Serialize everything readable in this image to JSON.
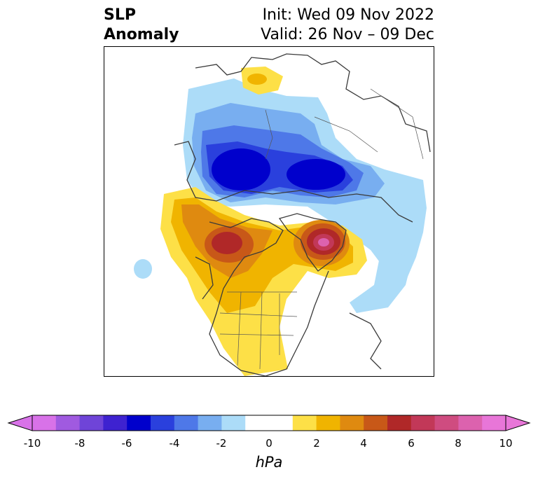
{
  "title": {
    "left_line1": "SLP",
    "left_line2": "Anomaly",
    "right_line1": "Init: Wed 09 Nov 2022",
    "right_line2": "Valid: 26 Nov – 09 Dec"
  },
  "colorbar": {
    "unit": "hPa",
    "ticks": [
      "-10",
      "-8",
      "-6",
      "-4",
      "-2",
      "0",
      "2",
      "4",
      "6",
      "8",
      "10"
    ],
    "colors": [
      "#d872e8",
      "#a05ae0",
      "#6f44d8",
      "#3e22d0",
      "#0000cc",
      "#2a40dd",
      "#4e78e8",
      "#78aef0",
      "#acdcf8",
      "#ffffff",
      "#ffffff",
      "#fde047",
      "#f0b400",
      "#df8a10",
      "#c85818",
      "#b02828",
      "#c23858",
      "#cf4c80",
      "#dc62ae",
      "#e876d8"
    ],
    "extend": "both"
  },
  "map": {
    "projection": "polar-stereographic",
    "features": [
      "coastlines",
      "country-borders",
      "us-state-borders"
    ]
  }
}
